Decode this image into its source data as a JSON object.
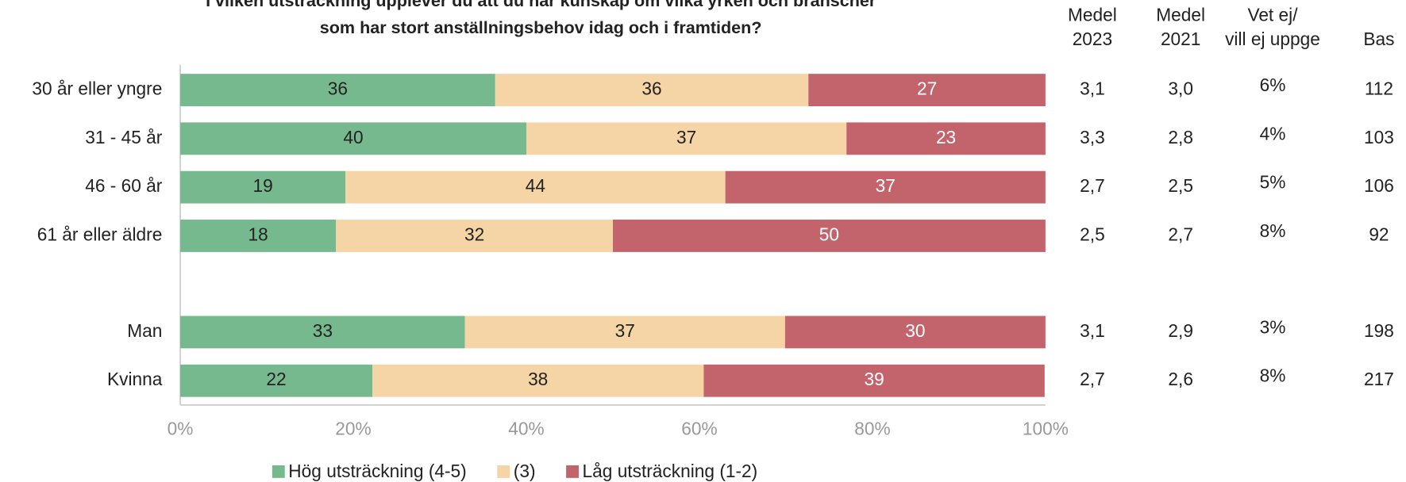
{
  "chart_data": {
    "type": "stacked-barh",
    "title": [
      "I vilken utsträckning upplever du att du har kunskap om vilka yrken och branscher",
      "som har stort anställningsbehov idag och i framtiden?"
    ],
    "categories": [
      "30 år eller yngre",
      "31 - 45 år",
      "46 - 60 år",
      "61 år eller äldre",
      "Man",
      "Kvinna"
    ],
    "series": [
      {
        "name": "Hög utsträckning (4-5)",
        "color": "#77b98e",
        "label_color": "#222",
        "values": [
          36.4,
          40.0,
          19.1,
          18.0,
          32.9,
          22.2
        ],
        "value_labels": [
          "36",
          "40",
          "19",
          "18",
          "33",
          "22"
        ]
      },
      {
        "name": "(3)",
        "color": "#f5d5a6",
        "label_color": "#222",
        "values": [
          36.2,
          37.0,
          43.9,
          32.0,
          37.0,
          38.3
        ],
        "value_labels": [
          "36",
          "37",
          "44",
          "32",
          "37",
          "38"
        ]
      },
      {
        "name": "Låg utsträckning (1-2)",
        "color": "#c3646d",
        "label_color": "#fff",
        "values": [
          27.4,
          23.0,
          37.0,
          50.0,
          30.1,
          39.4
        ],
        "value_labels": [
          "27",
          "23",
          "37",
          "50",
          "30",
          "39"
        ]
      }
    ],
    "xlim": [
      0,
      100
    ],
    "xticks": [
      {
        "value": 0,
        "label": "0%"
      },
      {
        "value": 20,
        "label": "20%"
      },
      {
        "value": 40,
        "label": "40%"
      },
      {
        "value": 60,
        "label": "60%"
      },
      {
        "value": 80,
        "label": "80%"
      },
      {
        "value": 100,
        "label": "100%"
      }
    ],
    "table": {
      "columns": [
        {
          "header": [
            "Medel",
            "2023"
          ],
          "values": [
            "3,1",
            "3,3",
            "2,7",
            "2,5",
            "3,1",
            "2,7"
          ]
        },
        {
          "header": [
            "Medel",
            "2021"
          ],
          "values": [
            "3,0",
            "2,8",
            "2,5",
            "2,7",
            "2,9",
            "2,6"
          ]
        },
        {
          "header": [
            "Vet ej/",
            "vill ej uppge"
          ],
          "values": [
            "6%",
            "4%",
            "5%",
            "8%",
            "3%",
            "8%"
          ]
        },
        {
          "header": [
            "Bas"
          ],
          "values": [
            112,
            103,
            106,
            92,
            198,
            217
          ]
        }
      ]
    }
  }
}
